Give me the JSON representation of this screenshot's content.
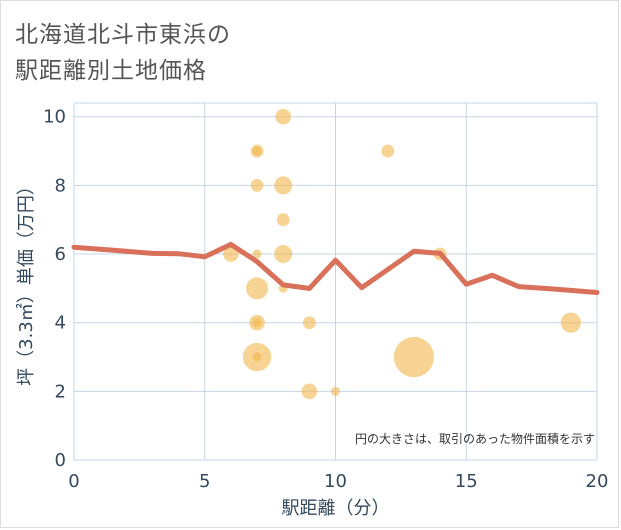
{
  "chart_data": {
    "type": "scatter",
    "title_line1": "北海道北斗市東浜の",
    "title_line2": "駅距離別土地価格",
    "xlabel": "駅距離（分）",
    "ylabel": "坪（3.3㎡）単価（万円）",
    "note": "円の大きさは、取引のあった物件面積を示す",
    "xlim": [
      0,
      20
    ],
    "ylim": [
      0,
      10.4
    ],
    "xticks": [
      0,
      5,
      10,
      15,
      20
    ],
    "yticks": [
      0,
      2,
      4,
      6,
      8,
      10
    ],
    "colors": {
      "bubble": "#f2b84b",
      "line": "#d9705a",
      "grid": "#c5d5e5"
    },
    "scatter": [
      {
        "x": 6,
        "y": 6.0,
        "size": 3
      },
      {
        "x": 7,
        "y": 9.0,
        "size": 2
      },
      {
        "x": 7,
        "y": 9.0,
        "size": 1
      },
      {
        "x": 7,
        "y": 8.0,
        "size": 2
      },
      {
        "x": 7,
        "y": 6.0,
        "size": 1
      },
      {
        "x": 7,
        "y": 5.0,
        "size": 6
      },
      {
        "x": 7,
        "y": 4.0,
        "size": 3
      },
      {
        "x": 7,
        "y": 4.0,
        "size": 1
      },
      {
        "x": 7,
        "y": 3.0,
        "size": 10
      },
      {
        "x": 7,
        "y": 3.0,
        "size": 1
      },
      {
        "x": 8,
        "y": 10.0,
        "size": 3
      },
      {
        "x": 8,
        "y": 8.0,
        "size": 4
      },
      {
        "x": 8,
        "y": 7.0,
        "size": 2
      },
      {
        "x": 8,
        "y": 6.0,
        "size": 4
      },
      {
        "x": 8,
        "y": 5.0,
        "size": 1
      },
      {
        "x": 9,
        "y": 4.0,
        "size": 2
      },
      {
        "x": 9,
        "y": 2.0,
        "size": 3
      },
      {
        "x": 10,
        "y": 2.0,
        "size": 1
      },
      {
        "x": 12,
        "y": 9.0,
        "size": 2
      },
      {
        "x": 13,
        "y": 3.0,
        "size": 20
      },
      {
        "x": 14,
        "y": 6.0,
        "size": 2
      },
      {
        "x": 19,
        "y": 4.0,
        "size": 5
      }
    ],
    "line": {
      "x": [
        0,
        1,
        2,
        3,
        4,
        5,
        6,
        7,
        8,
        9,
        10,
        11,
        12,
        13,
        14,
        15,
        16,
        17,
        18,
        19,
        20
      ],
      "y": [
        6.2,
        6.14,
        6.08,
        6.02,
        6.01,
        5.92,
        6.28,
        5.78,
        5.1,
        5.0,
        5.82,
        5.02,
        5.55,
        6.08,
        6.02,
        5.12,
        5.38,
        5.05,
        5.0,
        4.94,
        4.88
      ]
    }
  }
}
